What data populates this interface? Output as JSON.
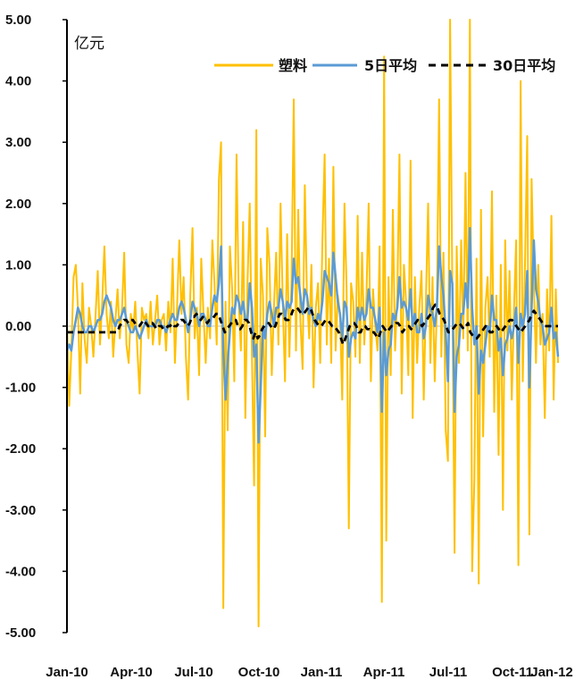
{
  "chart_data": {
    "type": "line",
    "title": "",
    "unit_label": "亿元",
    "ylim": [
      -5,
      5
    ],
    "y_ticks": [
      "5.00",
      "4.00",
      "3.00",
      "2.00",
      "1.00",
      "0.00",
      "-1.00",
      "-2.00",
      "-3.00",
      "-4.00",
      "-5.00"
    ],
    "x_ticks": [
      "Jan-10",
      "Apr-10",
      "Jul-10",
      "Oct-10",
      "Jan-11",
      "Apr-11",
      "Jul-11",
      "Oct-11",
      "Jan-12"
    ],
    "grid": false,
    "legend_position": "top-right",
    "series": [
      {
        "name": "塑料",
        "color": "#FFC000",
        "style": "solid",
        "values": [
          0.1,
          -1.3,
          -0.4,
          0.8,
          1.0,
          0.3,
          -1.1,
          0.7,
          -0.2,
          -0.6,
          0.3,
          0.0,
          -0.5,
          0.2,
          0.9,
          -0.3,
          0.4,
          1.3,
          0.2,
          -0.2,
          0.4,
          -0.5,
          0.1,
          0.6,
          -0.2,
          0.3,
          1.2,
          -0.3,
          -0.6,
          0.2,
          -0.1,
          0.4,
          -0.4,
          -1.1,
          0.3,
          0.1,
          0.2,
          -0.2,
          0.4,
          -0.3,
          0.1,
          0.5,
          -0.3,
          0.1,
          0.2,
          -0.4,
          0.4,
          -0.1,
          1.1,
          -0.6,
          0.3,
          1.4,
          0.2,
          0.8,
          -0.5,
          -1.2,
          0.5,
          1.6,
          -0.2,
          0.3,
          -0.8,
          1.1,
          0.2,
          -0.6,
          0.3,
          -0.2,
          1.4,
          0.7,
          -0.3,
          2.4,
          3.0,
          -4.6,
          0.4,
          -1.7,
          1.3,
          0.6,
          -0.9,
          2.8,
          0.4,
          -0.4,
          1.7,
          -1.5,
          0.7,
          2.0,
          -0.5,
          -2.6,
          3.2,
          -4.9,
          1.1,
          0.5,
          -1.8,
          1.6,
          1.0,
          -0.8,
          0.3,
          1.2,
          -0.3,
          2.0,
          0.4,
          -0.9,
          1.5,
          -0.5,
          0.8,
          3.7,
          -0.4,
          1.9,
          0.1,
          -0.7,
          2.3,
          0.5,
          -0.2,
          1.0,
          -1.0,
          0.3,
          0.7,
          -0.6,
          1.4,
          2.8,
          -0.3,
          1.1,
          -0.6,
          2.6,
          -0.4,
          0.5,
          0.2,
          -1.2,
          2.0,
          0.6,
          -3.3,
          0.7,
          0.4,
          -0.5,
          1.8,
          -0.6,
          1.2,
          -0.3,
          0.5,
          2.0,
          -0.9,
          0.6,
          0.0,
          -0.4,
          1.3,
          -4.5,
          4.4,
          -3.5,
          0.8,
          -0.8,
          1.9,
          -0.4,
          0.5,
          2.8,
          -1.1,
          1.0,
          0.4,
          -0.8,
          2.7,
          -1.5,
          0.8,
          -0.6,
          0.3,
          0.9,
          -1.2,
          0.4,
          2.0,
          -0.6,
          0.8,
          -0.9,
          0.3,
          3.7,
          -0.5,
          1.2,
          -1.7,
          -2.2,
          5.0,
          0.6,
          -3.7,
          1.3,
          -0.6,
          1.4,
          -0.2,
          2.5,
          -0.4,
          5.0,
          -4.0,
          -2.5,
          1.1,
          -4.2,
          1.9,
          -1.8,
          0.3,
          0.8,
          -0.5,
          2.2,
          -1.4,
          0.5,
          -2.1,
          1.0,
          -3.0,
          1.4,
          -0.4,
          0.9,
          -1.2,
          0.3,
          1.4,
          -3.9,
          4.0,
          -0.9,
          1.0,
          3.1,
          -3.4,
          2.4,
          0.7,
          -0.6,
          1.0,
          -0.3,
          0.2,
          -1.5,
          0.6,
          -0.4,
          1.8,
          -1.2,
          0.6,
          -0.6
        ]
      },
      {
        "name": "5日平均",
        "color": "#5B9BD5",
        "style": "solid",
        "values": [
          -0.4,
          -0.3,
          -0.4,
          -0.1,
          0.1,
          0.3,
          0.2,
          0.0,
          -0.1,
          -0.1,
          0.0,
          0.0,
          -0.1,
          0.0,
          0.1,
          0.1,
          0.2,
          0.4,
          0.5,
          0.4,
          0.3,
          0.1,
          0.0,
          0.1,
          0.1,
          0.2,
          0.3,
          0.1,
          0.0,
          -0.1,
          -0.1,
          0.0,
          -0.1,
          -0.2,
          -0.1,
          0.0,
          0.1,
          0.0,
          0.0,
          0.0,
          0.0,
          0.1,
          0.1,
          0.0,
          0.0,
          -0.1,
          0.0,
          0.1,
          0.2,
          0.1,
          0.1,
          0.3,
          0.4,
          0.3,
          0.1,
          -0.1,
          0.1,
          0.4,
          0.3,
          0.2,
          0.0,
          0.2,
          0.2,
          0.1,
          0.0,
          0.0,
          0.3,
          0.5,
          0.4,
          0.7,
          1.3,
          -0.4,
          -1.2,
          -0.6,
          -0.1,
          0.3,
          0.2,
          0.5,
          0.4,
          0.2,
          0.4,
          0.1,
          0.1,
          0.7,
          0.3,
          -0.5,
          -0.3,
          -1.9,
          -1.0,
          0.0,
          -0.2,
          0.2,
          0.4,
          0.2,
          0.0,
          0.3,
          0.3,
          0.6,
          0.4,
          0.1,
          0.4,
          0.3,
          0.4,
          1.1,
          0.7,
          0.8,
          0.5,
          0.2,
          0.6,
          0.5,
          0.2,
          0.3,
          0.1,
          0.0,
          0.2,
          0.1,
          0.4,
          0.9,
          0.8,
          0.7,
          0.5,
          1.2,
          0.8,
          0.4,
          0.2,
          -0.2,
          0.4,
          0.3,
          -0.5,
          -0.2,
          -0.1,
          -0.2,
          0.3,
          0.1,
          0.3,
          0.1,
          0.2,
          0.6,
          0.3,
          0.3,
          0.1,
          -0.1,
          0.3,
          -1.4,
          -0.1,
          -0.8,
          -0.4,
          -0.3,
          0.2,
          0.1,
          0.3,
          0.8,
          0.3,
          0.4,
          0.3,
          0.1,
          0.6,
          0.0,
          0.2,
          -0.1,
          -0.1,
          0.2,
          -0.2,
          0.0,
          0.5,
          0.3,
          0.2,
          0.0,
          0.3,
          1.3,
          0.8,
          0.5,
          -0.1,
          -0.9,
          0.9,
          0.7,
          -1.4,
          -0.5,
          -0.3,
          0.2,
          0.2,
          0.7,
          0.3,
          1.6,
          0.3,
          -0.3,
          0.0,
          -1.1,
          -0.4,
          -0.6,
          -0.3,
          0.0,
          -0.1,
          0.5,
          0.1,
          0.1,
          -0.4,
          -0.2,
          -0.8,
          -0.3,
          -0.2,
          0.0,
          -0.2,
          0.0,
          0.3,
          -0.6,
          0.2,
          0.0,
          0.2,
          0.9,
          -1.0,
          0.3,
          1.4,
          0.6,
          0.4,
          0.1,
          0.0,
          -0.3,
          -0.2,
          -0.1,
          0.3,
          -0.2,
          -0.1,
          -0.5
        ]
      },
      {
        "name": "30日平均",
        "color": "#000000",
        "style": "dashed",
        "values": [
          -0.1,
          -0.1,
          -0.1,
          -0.1,
          -0.1,
          -0.1,
          -0.1,
          -0.1,
          -0.1,
          -0.1,
          -0.1,
          -0.1,
          -0.1,
          -0.1,
          -0.1,
          -0.1,
          -0.1,
          -0.1,
          -0.1,
          -0.1,
          -0.1,
          -0.1,
          -0.1,
          -0.1,
          0.0,
          0.05,
          0.1,
          0.1,
          0.05,
          0.1,
          0.1,
          0.05,
          0.0,
          0.0,
          0.05,
          0.1,
          0.05,
          0.0,
          0.0,
          0.05,
          0.0,
          -0.05,
          0.0,
          0.0,
          -0.05,
          -0.05,
          0.0,
          0.0,
          0.05,
          0.0,
          0.0,
          0.05,
          0.1,
          0.1,
          0.05,
          0.0,
          0.05,
          0.15,
          0.15,
          0.2,
          0.15,
          0.1,
          0.15,
          0.1,
          0.05,
          0.1,
          0.1,
          0.15,
          0.2,
          0.2,
          0.1,
          0.0,
          -0.1,
          -0.05,
          0.0,
          0.05,
          0.1,
          0.1,
          0.0,
          -0.05,
          0.0,
          0.1,
          0.1,
          0.05,
          -0.1,
          -0.2,
          -0.1,
          -0.2,
          -0.15,
          -0.05,
          0.0,
          0.05,
          0.05,
          0.0,
          -0.05,
          0.0,
          0.1,
          0.2,
          0.2,
          0.15,
          0.1,
          0.1,
          0.15,
          0.25,
          0.3,
          0.3,
          0.25,
          0.2,
          0.2,
          0.25,
          0.3,
          0.3,
          0.2,
          0.1,
          0.05,
          0.0,
          0.0,
          0.05,
          0.1,
          0.1,
          0.05,
          0.0,
          0.0,
          -0.05,
          -0.1,
          -0.2,
          -0.3,
          -0.2,
          -0.1,
          0.0,
          0.05,
          0.05,
          0.0,
          -0.1,
          -0.1,
          0.0,
          0.0,
          -0.05,
          -0.05,
          -0.1,
          -0.1,
          -0.15,
          -0.2,
          -0.1,
          0.0,
          -0.05,
          -0.1,
          -0.05,
          0.0,
          0.0,
          0.05,
          0.05,
          0.0,
          -0.1,
          -0.05,
          0.0,
          0.0,
          -0.05,
          0.0,
          0.05,
          0.1,
          0.05,
          0.0,
          0.05,
          0.1,
          0.15,
          0.2,
          0.3,
          0.35,
          0.3,
          0.2,
          0.15,
          0.1,
          0.0,
          -0.1,
          -0.1,
          -0.05,
          0.0,
          0.05,
          0.05,
          0.0,
          -0.05,
          0.0,
          0.05,
          -0.1,
          -0.15,
          -0.2,
          -0.2,
          -0.15,
          -0.1,
          -0.05,
          0.0,
          -0.05,
          -0.1,
          -0.1,
          -0.05,
          0.0,
          -0.05,
          -0.1,
          -0.05,
          0.0,
          0.05,
          0.1,
          0.1,
          0.05,
          0.0,
          -0.05,
          -0.1,
          -0.05,
          0.0,
          0.05,
          0.1,
          0.2,
          0.25,
          0.2,
          0.15,
          0.1,
          0.05,
          0.0,
          0.0,
          0.0,
          0.0,
          0.0,
          0.0,
          0.0
        ]
      }
    ]
  }
}
